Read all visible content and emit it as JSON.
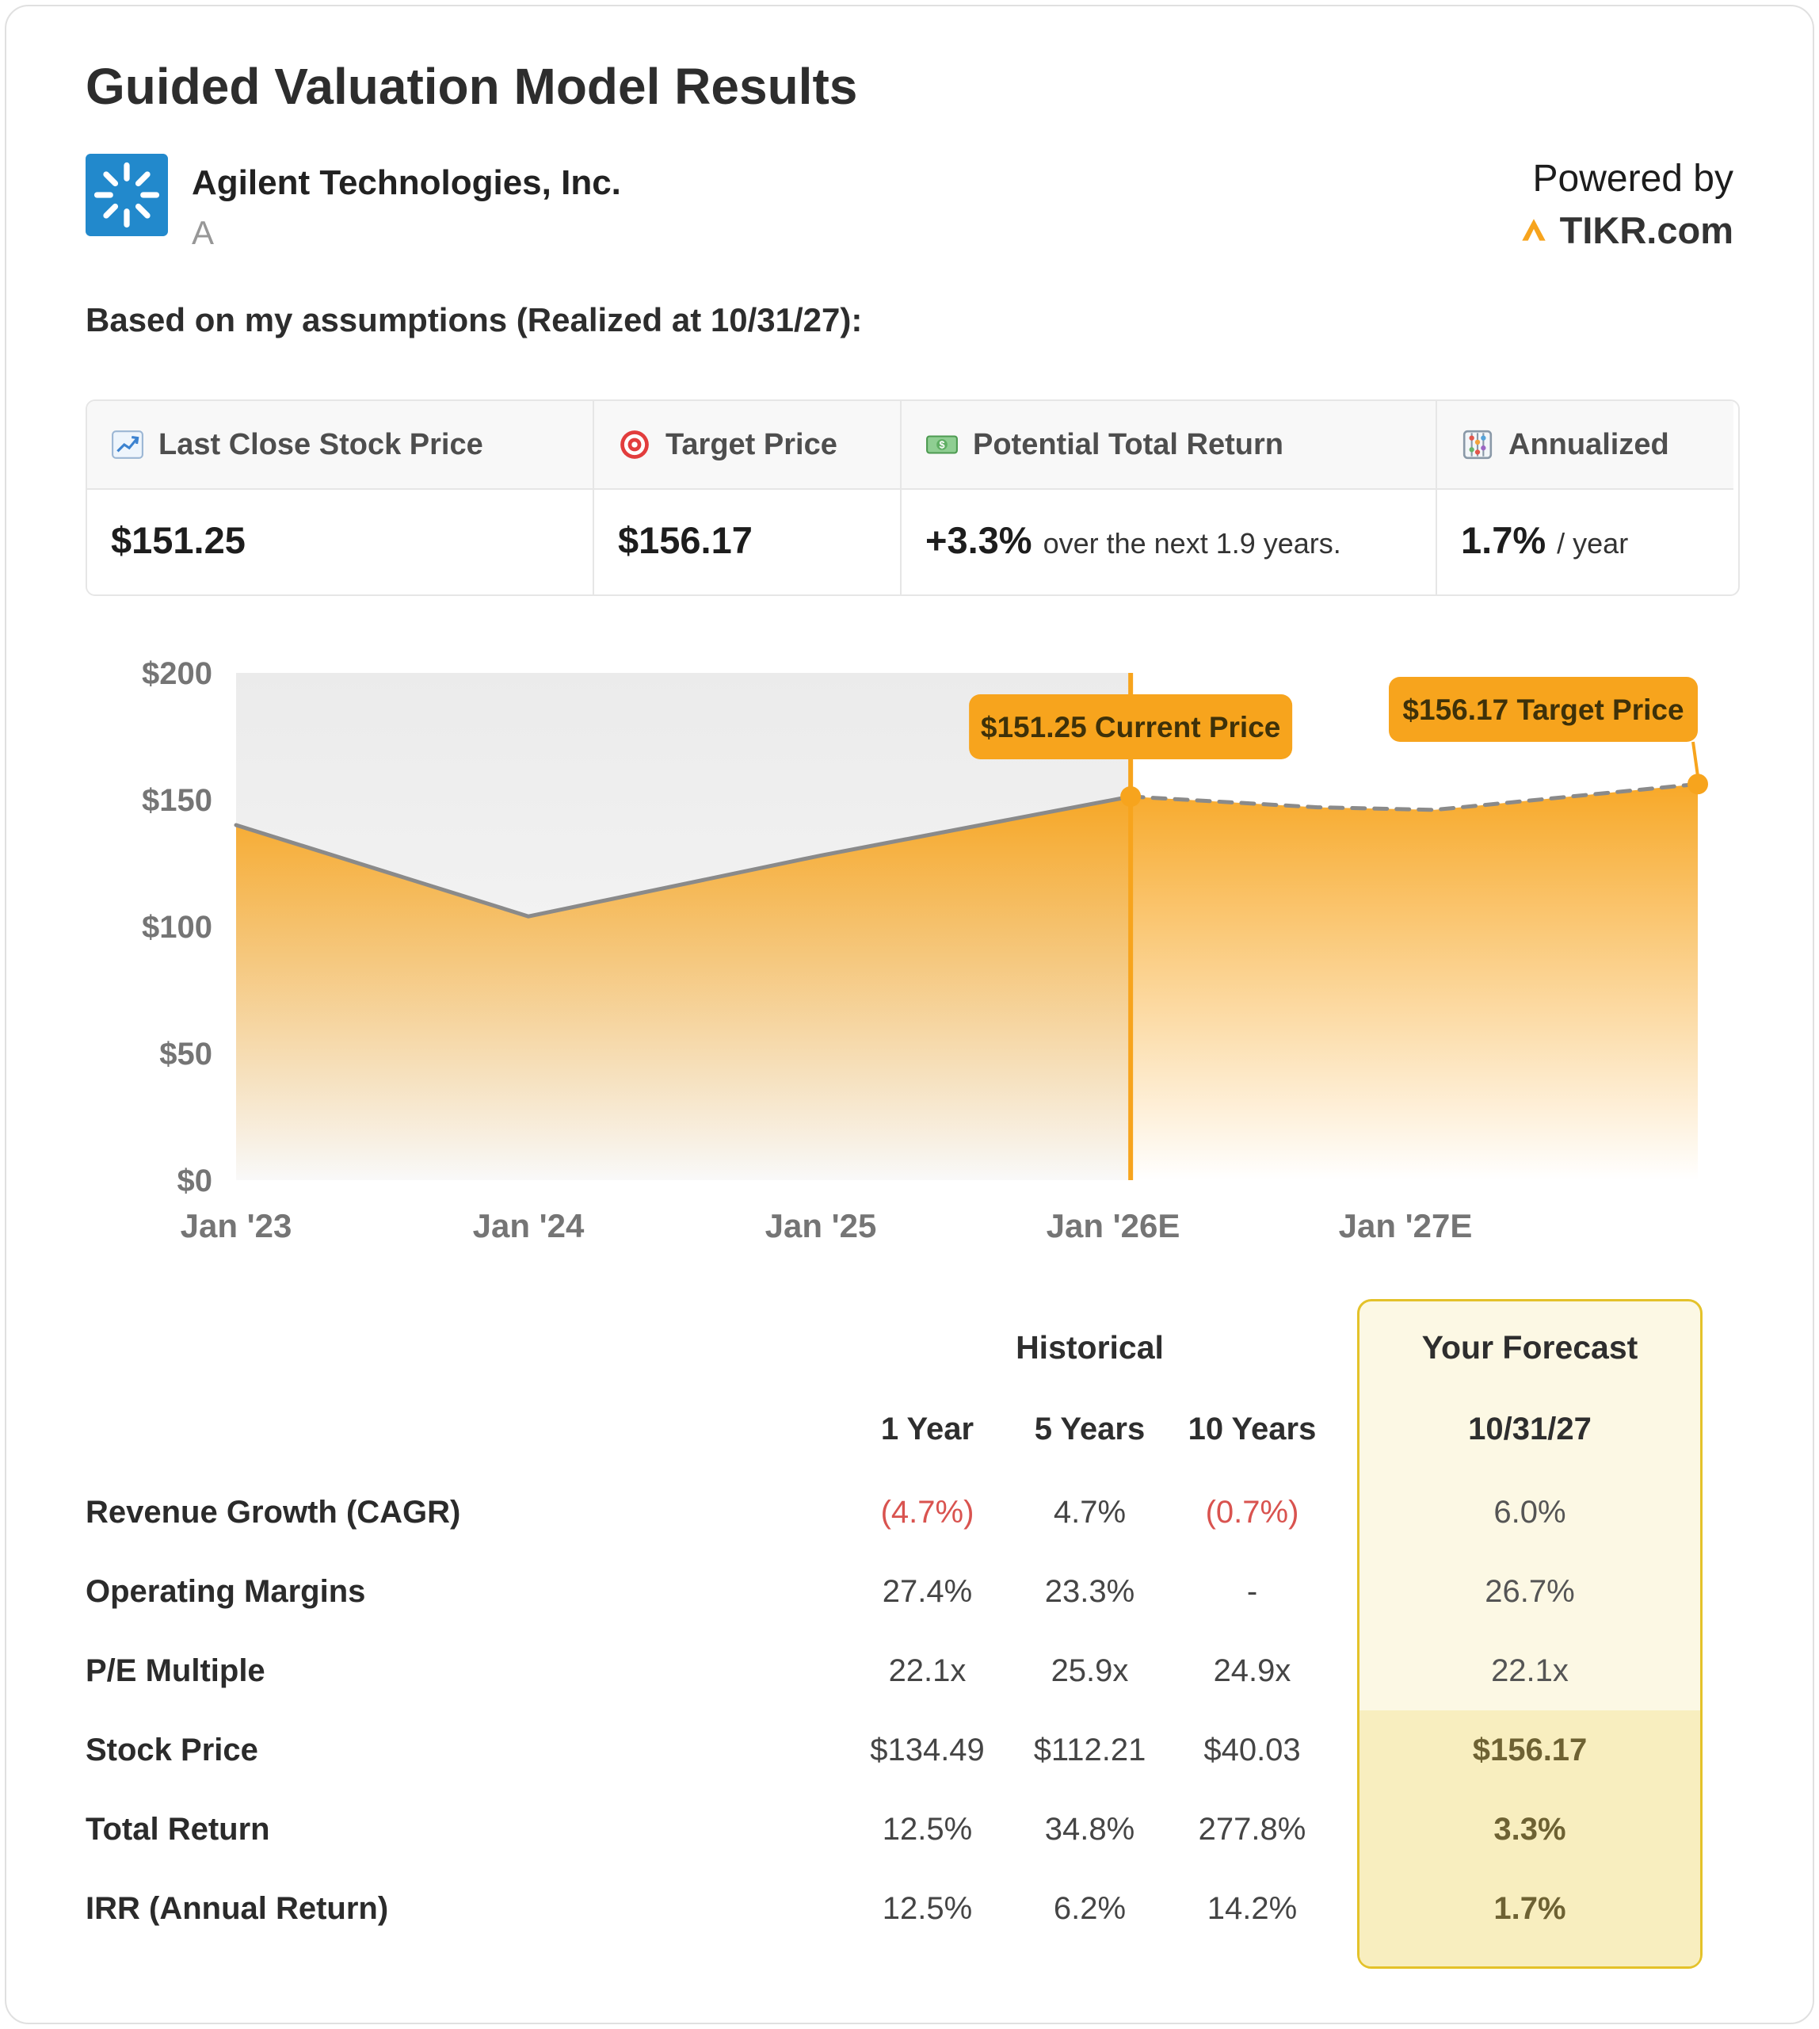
{
  "header": {
    "title": "Guided Valuation Model Results",
    "company": "Agilent Technologies, Inc.",
    "ticker": "A",
    "powered_by": "Powered by",
    "brand": "TIKR.com"
  },
  "assumptions": "Based on my assumptions (Realized at 10/31/27):",
  "summary": {
    "cards": [
      {
        "icon": "chart-increasing",
        "label": "Last Close Stock Price",
        "value": "$151.25",
        "note": ""
      },
      {
        "icon": "target",
        "label": "Target Price",
        "value": "$156.17",
        "note": ""
      },
      {
        "icon": "banknote",
        "label": "Potential Total Return",
        "value": "+3.3%",
        "note": "over the next 1.9 years."
      },
      {
        "icon": "abacus",
        "label": "Annualized",
        "value": "1.7%",
        "note": "/ year"
      }
    ]
  },
  "chart_data": {
    "type": "area",
    "title": "",
    "xlabel": "",
    "ylabel": "",
    "x_ticks": [
      "Jan '23",
      "Jan '24",
      "Jan '25",
      "Jan '26E",
      "Jan '27E"
    ],
    "x_tick_positions": [
      0,
      1,
      2,
      3,
      4
    ],
    "xlim": [
      0,
      5
    ],
    "y_ticks": [
      "$0",
      "$50",
      "$100",
      "$150",
      "$200"
    ],
    "y_tick_values": [
      0,
      50,
      100,
      150,
      200
    ],
    "ylim": [
      0,
      200
    ],
    "grid": false,
    "accent_color": "#F7A41D",
    "line_color": "#8a8a8a",
    "series": [
      {
        "name": "Historical price",
        "style": "solid",
        "x": [
          0,
          1,
          2,
          3.06
        ],
        "y": [
          140,
          104,
          128,
          151.25
        ]
      },
      {
        "name": "Forecast price",
        "style": "dashed",
        "x": [
          3.06,
          3.7,
          4.1,
          5.0
        ],
        "y": [
          151.25,
          147,
          146,
          156.17
        ]
      }
    ],
    "divider_x": 3.06,
    "markers": [
      {
        "x": 3.06,
        "y": 151.25,
        "label": "$151.25 Current Price"
      },
      {
        "x": 5.0,
        "y": 156.17,
        "label": "$156.17 Target Price"
      }
    ]
  },
  "table": {
    "historical_header": "Historical",
    "forecast_header": "Your Forecast",
    "col_headers": [
      "1 Year",
      "5 Years",
      "10 Years"
    ],
    "forecast_col_header": "10/31/27",
    "rows": [
      {
        "label": "Revenue Growth (CAGR)",
        "values": [
          "(4.7%)",
          "4.7%",
          "(0.7%)"
        ],
        "forecast": "6.0%",
        "highlight": false
      },
      {
        "label": "Operating Margins",
        "values": [
          "27.4%",
          "23.3%",
          "-"
        ],
        "forecast": "26.7%",
        "highlight": false
      },
      {
        "label": "P/E Multiple",
        "values": [
          "22.1x",
          "25.9x",
          "24.9x"
        ],
        "forecast": "22.1x",
        "highlight": false
      },
      {
        "label": "Stock Price",
        "values": [
          "$134.49",
          "$112.21",
          "$40.03"
        ],
        "forecast": "$156.17",
        "highlight": true
      },
      {
        "label": "Total Return",
        "values": [
          "12.5%",
          "34.8%",
          "277.8%"
        ],
        "forecast": "3.3%",
        "highlight": true
      },
      {
        "label": "IRR (Annual Return)",
        "values": [
          "12.5%",
          "6.2%",
          "14.2%"
        ],
        "forecast": "1.7%",
        "highlight": true
      }
    ]
  }
}
